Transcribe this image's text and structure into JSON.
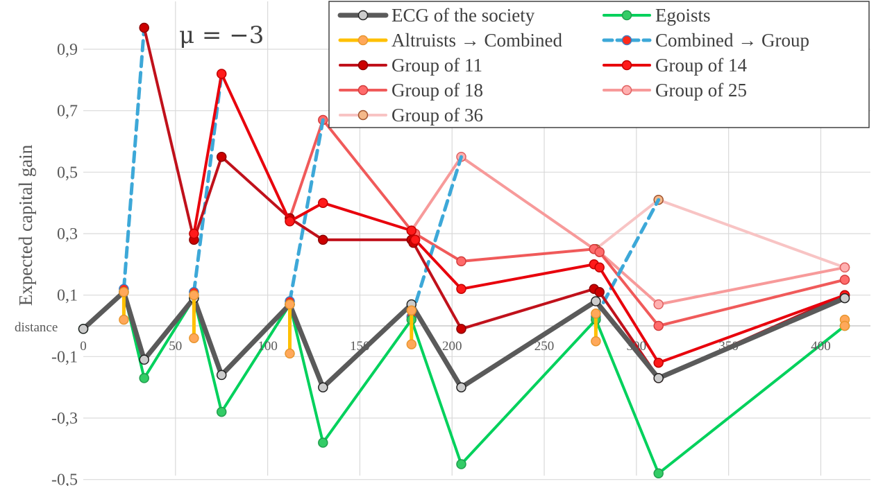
{
  "chart_data": {
    "type": "line",
    "title": "μ = −3",
    "ylabel": "Expected capital gain",
    "xlabel": "distance",
    "xlim": [
      0,
      420
    ],
    "ylim": [
      -0.5,
      1.0
    ],
    "xticks": [
      0,
      50,
      100,
      150,
      200,
      250,
      300,
      350,
      400
    ],
    "xtick_labels": [
      "0",
      "50",
      "100",
      "150",
      "200",
      "250",
      "300",
      "350",
      "400"
    ],
    "yticks": [
      -0.5,
      -0.3,
      -0.1,
      0.1,
      0.3,
      0.5,
      0.7,
      0.9
    ],
    "ytick_labels": [
      "-0,5",
      "-0,3",
      "-0,1",
      "0,1",
      "0,3",
      "0,5",
      "0,7",
      "0,9"
    ],
    "grid": true,
    "legend_position": "top-right",
    "series": [
      {
        "name": "Egoists",
        "line_color": "#00d15c",
        "fill": "#33cc66",
        "stroke": "#1f9e4d",
        "width": 4,
        "dash": false,
        "points": [
          [
            0,
            -0.01
          ],
          [
            22,
            0.11
          ],
          [
            33,
            -0.17
          ],
          [
            60,
            0.09
          ],
          [
            75,
            -0.28
          ],
          [
            112,
            0.07
          ],
          [
            130,
            -0.38
          ],
          [
            178,
            0.02
          ],
          [
            205,
            -0.45
          ],
          [
            278,
            0.02
          ],
          [
            312,
            -0.48
          ],
          [
            413,
            0.0
          ]
        ]
      },
      {
        "name": "ECG of the society",
        "line_color": "#5a5a5a",
        "fill": "#cccccc",
        "stroke": "#222222",
        "width": 7,
        "dash": false,
        "points": [
          [
            0,
            -0.01
          ],
          [
            22,
            0.11
          ],
          [
            33,
            -0.11
          ],
          [
            60,
            0.09
          ],
          [
            75,
            -0.16
          ],
          [
            112,
            0.07
          ],
          [
            130,
            -0.2
          ],
          [
            178,
            0.07
          ],
          [
            205,
            -0.2
          ],
          [
            278,
            0.08
          ],
          [
            312,
            -0.17
          ],
          [
            413,
            0.09
          ]
        ]
      },
      {
        "name": "Altruists → Combined",
        "line_color": "#ffc000",
        "fill": "#ffa85a",
        "stroke": "#e8962e",
        "width": 5,
        "dash": false,
        "segments": [
          [
            [
              22,
              0.11
            ],
            [
              22,
              0.02
            ]
          ],
          [
            [
              60,
              0.1
            ],
            [
              60,
              -0.04
            ]
          ],
          [
            [
              112,
              0.07
            ],
            [
              112,
              -0.09
            ]
          ],
          [
            [
              178,
              0.05
            ],
            [
              178,
              -0.06
            ]
          ],
          [
            [
              278,
              0.04
            ],
            [
              278,
              -0.05
            ]
          ],
          [
            [
              413,
              0.02
            ],
            [
              413,
              0.0
            ]
          ]
        ]
      },
      {
        "name": "Combined → Group",
        "line_color": "#3da8d8",
        "fill": "#ff2a1a",
        "stroke": "#3b7fc4",
        "width": 5,
        "dash": true,
        "segments": [
          [
            [
              22,
              0.12
            ],
            [
              33,
              0.97
            ]
          ],
          [
            [
              60,
              0.11
            ],
            [
              75,
              0.82
            ]
          ],
          [
            [
              112,
              0.08
            ],
            [
              130,
              0.67
            ]
          ],
          [
            [
              178,
              0.03
            ],
            [
              205,
              0.55
            ]
          ],
          [
            [
              278,
              0.03
            ],
            [
              312,
              0.41
            ]
          ]
        ]
      },
      {
        "name": "Group of 11",
        "line_color": "#c0111b",
        "fill": "#cc0000",
        "stroke": "#8b0000",
        "width": 4,
        "dash": false,
        "points": [
          [
            33,
            0.97
          ],
          [
            60,
            0.28
          ],
          [
            75,
            0.55
          ],
          [
            112,
            0.35
          ],
          [
            130,
            0.28
          ],
          [
            178,
            0.28
          ],
          [
            179,
            0.27
          ],
          [
            205,
            -0.01
          ],
          [
            277,
            0.12
          ],
          [
            280,
            0.11
          ],
          [
            312,
            -0.17
          ],
          [
            413,
            0.1
          ]
        ]
      },
      {
        "name": "Group of 14",
        "line_color": "#e8000c",
        "fill": "#ff1a1a",
        "stroke": "#c00000",
        "width": 4,
        "dash": false,
        "points": [
          [
            60,
            0.3
          ],
          [
            75,
            0.82
          ],
          [
            112,
            0.34
          ],
          [
            130,
            0.4
          ],
          [
            178,
            0.31
          ],
          [
            180,
            0.28
          ],
          [
            205,
            0.12
          ],
          [
            277,
            0.2
          ],
          [
            280,
            0.19
          ],
          [
            312,
            -0.12
          ],
          [
            413,
            0.1
          ]
        ]
      },
      {
        "name": "Group of 18",
        "line_color": "#f05a5a",
        "fill": "#ff6b6b",
        "stroke": "#d23c3c",
        "width": 4,
        "dash": false,
        "points": [
          [
            112,
            0.35
          ],
          [
            130,
            0.67
          ],
          [
            178,
            0.31
          ],
          [
            180,
            0.3
          ],
          [
            205,
            0.21
          ],
          [
            277,
            0.25
          ],
          [
            280,
            0.24
          ],
          [
            312,
            0.0
          ],
          [
            413,
            0.15
          ]
        ]
      },
      {
        "name": "Group of 25",
        "line_color": "#f79a9a",
        "fill": "#ffb0b0",
        "stroke": "#e06060",
        "width": 4,
        "dash": false,
        "points": [
          [
            178,
            0.31
          ],
          [
            205,
            0.55
          ],
          [
            277,
            0.25
          ],
          [
            280,
            0.24
          ],
          [
            312,
            0.07
          ],
          [
            413,
            0.19
          ]
        ]
      },
      {
        "name": "Group of 36",
        "line_color": "#f8c4c4",
        "fill": "#f4b88a",
        "stroke": "#a0522d",
        "width": 4,
        "dash": false,
        "points": [
          [
            278,
            0.25
          ],
          [
            312,
            0.41
          ],
          [
            413,
            0.19
          ]
        ]
      }
    ],
    "legend_order": [
      "ECG of the society",
      "Egoists",
      "Altruists → Combined",
      "Combined → Group",
      "Group of 11",
      "Group of 14",
      "Group of 18",
      "Group of 25",
      "Group of 36"
    ]
  }
}
